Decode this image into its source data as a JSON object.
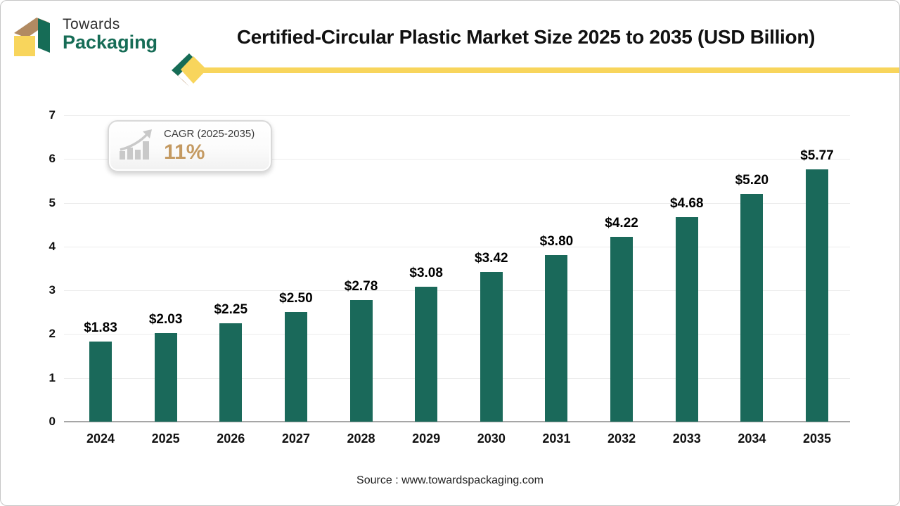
{
  "header": {
    "logo_line1": "Towards",
    "logo_line2": "Packaging",
    "title": "Certified-Circular Plastic Market Size 2025 to 2035 (USD Billion)"
  },
  "badge": {
    "label": "CAGR (2025-2035)",
    "value": "11%"
  },
  "footer": {
    "source": "Source : www.towardspackaging.com"
  },
  "colors": {
    "bar": "#1a695a",
    "brand_green": "#166c56",
    "brand_yellow": "#f8d55c",
    "brand_tan": "#b18a62",
    "cagr_gold": "#c49a62",
    "gridline": "#ececec",
    "baseline": "#a6a6a6"
  },
  "chart_data": {
    "type": "bar",
    "title": "Certified-Circular Plastic Market Size 2025 to 2035 (USD Billion)",
    "categories": [
      "2024",
      "2025",
      "2026",
      "2027",
      "2028",
      "2029",
      "2030",
      "2031",
      "2032",
      "2033",
      "2034",
      "2035"
    ],
    "values": [
      1.83,
      2.03,
      2.25,
      2.5,
      2.78,
      3.08,
      3.42,
      3.8,
      4.22,
      4.68,
      5.2,
      5.77
    ],
    "labels": [
      "$1.83",
      "$2.03",
      "$2.25",
      "$2.50",
      "$2.78",
      "$3.08",
      "$3.42",
      "$3.80",
      "$4.22",
      "$4.68",
      "$5.20",
      "$5.77"
    ],
    "xlabel": "",
    "ylabel": "",
    "ylim": [
      0,
      7
    ],
    "yticks": [
      0,
      1,
      2,
      3,
      4,
      5,
      6,
      7
    ],
    "grid": true,
    "legend": "none",
    "bar_color": "#1a695a"
  }
}
